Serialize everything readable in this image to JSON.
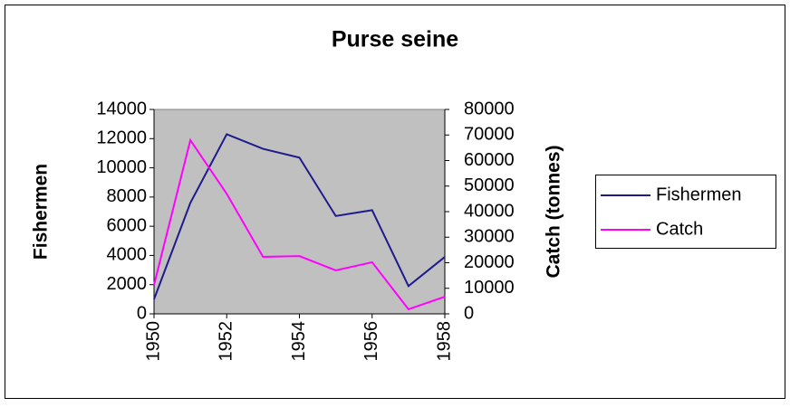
{
  "chart_data": {
    "type": "line",
    "title": "Purse seine",
    "x": [
      1950,
      1951,
      1952,
      1953,
      1954,
      1955,
      1956,
      1957,
      1958
    ],
    "xlim": [
      1950,
      1958
    ],
    "xticks": [
      1950,
      1952,
      1954,
      1956,
      1958
    ],
    "y_label": "Fishermen",
    "y2_label": "Catch (tonnes)",
    "ylim": [
      0,
      14000
    ],
    "yticks": [
      0,
      2000,
      4000,
      6000,
      8000,
      10000,
      12000,
      14000
    ],
    "y2lim": [
      0,
      80000
    ],
    "y2ticks": [
      0,
      10000,
      20000,
      30000,
      40000,
      50000,
      60000,
      70000,
      80000
    ],
    "grid": false,
    "legend": "right",
    "plot_background": "#c0c0c0",
    "series": [
      {
        "name": "Fishermen",
        "color": "#1f1a8c",
        "values": [
          1000,
          7600,
          12300,
          11300,
          10700,
          6700,
          7100,
          1900,
          3900
        ]
      },
      {
        "name": "Catch",
        "color": "#ff00ff",
        "axis": "y2",
        "values": [
          11300,
          68000,
          47000,
          22300,
          22600,
          17000,
          20200,
          1800,
          6700
        ]
      }
    ]
  }
}
